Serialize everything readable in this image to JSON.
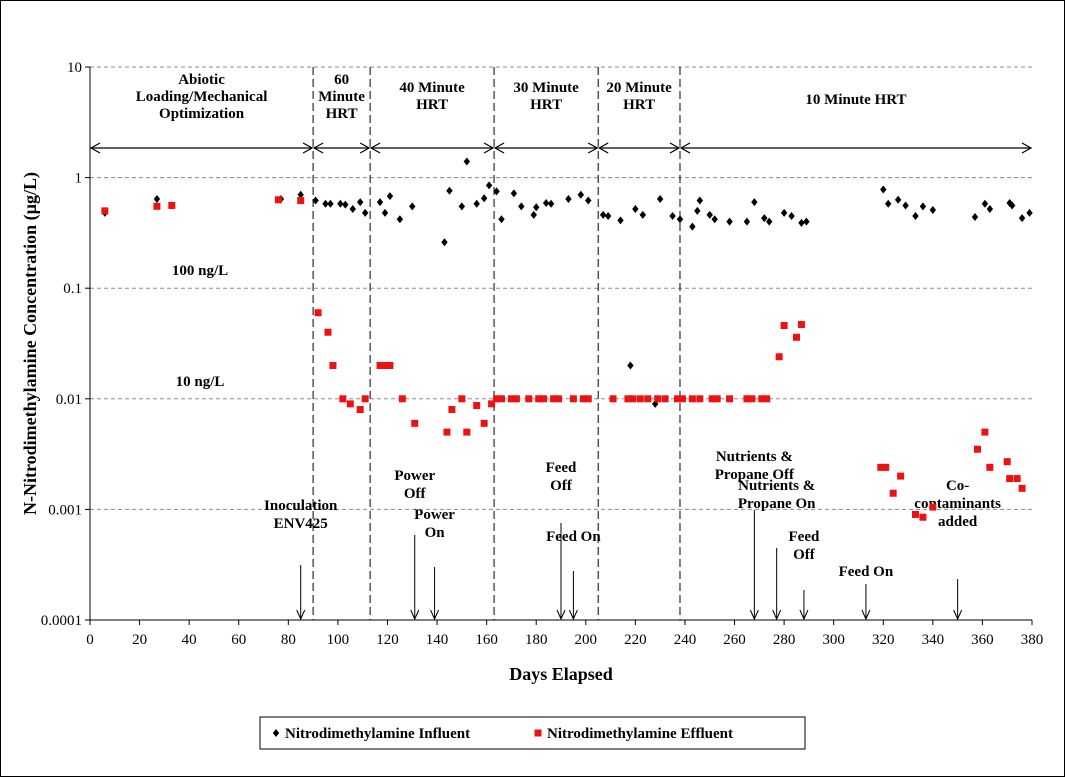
{
  "chart_data": {
    "type": "scatter",
    "xlabel": "Days Elapsed",
    "ylabel": "N-Nitrodimethylamine Concentration (µg/L)",
    "xlim": [
      0,
      380
    ],
    "ylim": [
      0.0001,
      10
    ],
    "yscale": "log",
    "xticks": [
      0,
      20,
      40,
      60,
      80,
      100,
      120,
      140,
      160,
      180,
      200,
      220,
      240,
      260,
      280,
      300,
      320,
      340,
      360,
      380
    ],
    "yticks": [
      {
        "value": 10,
        "label": "10"
      },
      {
        "value": 1,
        "label": "1"
      },
      {
        "value": 0.1,
        "label": "0.1"
      },
      {
        "value": 0.01,
        "label": "0.01"
      },
      {
        "value": 0.001,
        "label": "0.001"
      },
      {
        "value": 0.0001,
        "label": "0.0001"
      }
    ],
    "grid": "horizontal dashed",
    "legend_position": "bottom",
    "series": [
      {
        "name": "Nitrodimethylamine Influent",
        "marker": "diamond",
        "color": "#000000",
        "points": [
          [
            6,
            0.48
          ],
          [
            27,
            0.64
          ],
          [
            33,
            0.56
          ],
          [
            77,
            0.64
          ],
          [
            85,
            0.7
          ],
          [
            91,
            0.62
          ],
          [
            95,
            0.58
          ],
          [
            97,
            0.58
          ],
          [
            101,
            0.58
          ],
          [
            103,
            0.57
          ],
          [
            106,
            0.52
          ],
          [
            109,
            0.6
          ],
          [
            111,
            0.48
          ],
          [
            117,
            0.6
          ],
          [
            119,
            0.48
          ],
          [
            121,
            0.68
          ],
          [
            125,
            0.42
          ],
          [
            130,
            0.55
          ],
          [
            143,
            0.26
          ],
          [
            145,
            0.76
          ],
          [
            150,
            0.55
          ],
          [
            152,
            1.4
          ],
          [
            156,
            0.58
          ],
          [
            159,
            0.65
          ],
          [
            161,
            0.85
          ],
          [
            164,
            0.75
          ],
          [
            166,
            0.42
          ],
          [
            171,
            0.72
          ],
          [
            174,
            0.55
          ],
          [
            179,
            0.46
          ],
          [
            180,
            0.54
          ],
          [
            184,
            0.59
          ],
          [
            186,
            0.58
          ],
          [
            193,
            0.64
          ],
          [
            198,
            0.7
          ],
          [
            201,
            0.62
          ],
          [
            207,
            0.46
          ],
          [
            209,
            0.45
          ],
          [
            214,
            0.41
          ],
          [
            218,
            0.02
          ],
          [
            220,
            0.52
          ],
          [
            223,
            0.46
          ],
          [
            228,
            0.009
          ],
          [
            230,
            0.64
          ],
          [
            235,
            0.45
          ],
          [
            238,
            0.42
          ],
          [
            243,
            0.36
          ],
          [
            245,
            0.5
          ],
          [
            246,
            0.62
          ],
          [
            250,
            0.46
          ],
          [
            252,
            0.42
          ],
          [
            258,
            0.4
          ],
          [
            265,
            0.4
          ],
          [
            268,
            0.6
          ],
          [
            272,
            0.43
          ],
          [
            274,
            0.4
          ],
          [
            280,
            0.48
          ],
          [
            283,
            0.45
          ],
          [
            287,
            0.39
          ],
          [
            289,
            0.4
          ],
          [
            320,
            0.78
          ],
          [
            322,
            0.58
          ],
          [
            326,
            0.63
          ],
          [
            329,
            0.56
          ],
          [
            333,
            0.45
          ],
          [
            336,
            0.55
          ],
          [
            340,
            0.51
          ],
          [
            357,
            0.44
          ],
          [
            361,
            0.58
          ],
          [
            363,
            0.52
          ],
          [
            371,
            0.59
          ],
          [
            372,
            0.56
          ],
          [
            376,
            0.43
          ],
          [
            379,
            0.48
          ]
        ]
      },
      {
        "name": "Nitrodimethylamine Effluent",
        "marker": "square",
        "color": "#ee1111",
        "points": [
          [
            6,
            0.5
          ],
          [
            27,
            0.55
          ],
          [
            33,
            0.56
          ],
          [
            76,
            0.63
          ],
          [
            85,
            0.62
          ],
          [
            92,
            0.06
          ],
          [
            96,
            0.04
          ],
          [
            98,
            0.02
          ],
          [
            102,
            0.01
          ],
          [
            105,
            0.009
          ],
          [
            109,
            0.008
          ],
          [
            111,
            0.01
          ],
          [
            117,
            0.02
          ],
          [
            119,
            0.02
          ],
          [
            121,
            0.02
          ],
          [
            126,
            0.01
          ],
          [
            131,
            0.006
          ],
          [
            144,
            0.005
          ],
          [
            146,
            0.008
          ],
          [
            150,
            0.01
          ],
          [
            152,
            0.005
          ],
          [
            156,
            0.0087
          ],
          [
            159,
            0.006
          ],
          [
            162,
            0.009
          ],
          [
            164,
            0.01
          ],
          [
            166,
            0.01
          ],
          [
            170,
            0.01
          ],
          [
            172,
            0.01
          ],
          [
            177,
            0.01
          ],
          [
            181,
            0.01
          ],
          [
            183,
            0.01
          ],
          [
            187,
            0.01
          ],
          [
            189,
            0.01
          ],
          [
            195,
            0.01
          ],
          [
            199,
            0.01
          ],
          [
            201,
            0.01
          ],
          [
            211,
            0.01
          ],
          [
            217,
            0.01
          ],
          [
            219,
            0.01
          ],
          [
            222,
            0.01
          ],
          [
            225,
            0.01
          ],
          [
            229,
            0.01
          ],
          [
            232,
            0.01
          ],
          [
            237,
            0.01
          ],
          [
            239,
            0.01
          ],
          [
            243,
            0.01
          ],
          [
            246,
            0.01
          ],
          [
            251,
            0.01
          ],
          [
            253,
            0.01
          ],
          [
            258,
            0.01
          ],
          [
            265,
            0.01
          ],
          [
            267,
            0.01
          ],
          [
            271,
            0.01
          ],
          [
            273,
            0.01
          ],
          [
            278,
            0.024
          ],
          [
            280,
            0.046
          ],
          [
            285,
            0.036
          ],
          [
            287,
            0.047
          ],
          [
            319,
            0.0024
          ],
          [
            321,
            0.0024
          ],
          [
            324,
            0.0014
          ],
          [
            327,
            0.002
          ],
          [
            333,
            0.0009
          ],
          [
            336,
            0.00085
          ],
          [
            340,
            0.00105
          ],
          [
            358,
            0.0035
          ],
          [
            361,
            0.005
          ],
          [
            363,
            0.0024
          ],
          [
            370,
            0.0027
          ],
          [
            371,
            0.0019
          ],
          [
            374,
            0.0019
          ],
          [
            376,
            0.00155
          ]
        ]
      }
    ],
    "phases": [
      {
        "label": "Abiotic Loading/Mechanical Optimization",
        "start": 0,
        "end": 90,
        "lines": [
          "Abiotic",
          "Loading/Mechanical",
          "Optimization"
        ]
      },
      {
        "label": "60 Minute HRT",
        "start": 90,
        "end": 113,
        "lines": [
          "60",
          "Minute",
          "HRT"
        ]
      },
      {
        "label": "40 Minute HRT",
        "start": 113,
        "end": 163,
        "lines": [
          "40 Minute",
          "HRT"
        ]
      },
      {
        "label": "30 Minute HRT",
        "start": 163,
        "end": 205,
        "lines": [
          "30 Minute",
          "HRT"
        ]
      },
      {
        "label": "20 Minute HRT",
        "start": 205,
        "end": 238,
        "lines": [
          "20 Minute",
          "HRT"
        ]
      },
      {
        "label": "10 Minute HRT",
        "start": 238,
        "end": 380,
        "lines": [
          "10 Minute HRT"
        ]
      }
    ],
    "reference_labels": [
      {
        "text": "100 ng/L",
        "value": 0.1
      },
      {
        "text": "10 ng/L",
        "value": 0.01
      }
    ],
    "events": [
      {
        "day": 85,
        "lines": [
          "Inoculation",
          "ENV425"
        ]
      },
      {
        "day": 131,
        "lines": [
          "Power",
          "Off"
        ]
      },
      {
        "day": 139,
        "lines": [
          "Power",
          "On"
        ]
      },
      {
        "day": 190,
        "lines": [
          "Feed",
          "Off"
        ]
      },
      {
        "day": 195,
        "lines": [
          "Feed On"
        ]
      },
      {
        "day": 268,
        "lines": [
          "Nutrients &",
          "Propane Off"
        ]
      },
      {
        "day": 277,
        "lines": [
          "Nutrients &",
          "Propane On"
        ]
      },
      {
        "day": 288,
        "lines": [
          "Feed",
          "Off"
        ]
      },
      {
        "day": 313,
        "lines": [
          "Feed On"
        ]
      },
      {
        "day": 350,
        "lines": [
          "Co-",
          "contaminants",
          "added"
        ]
      }
    ]
  }
}
